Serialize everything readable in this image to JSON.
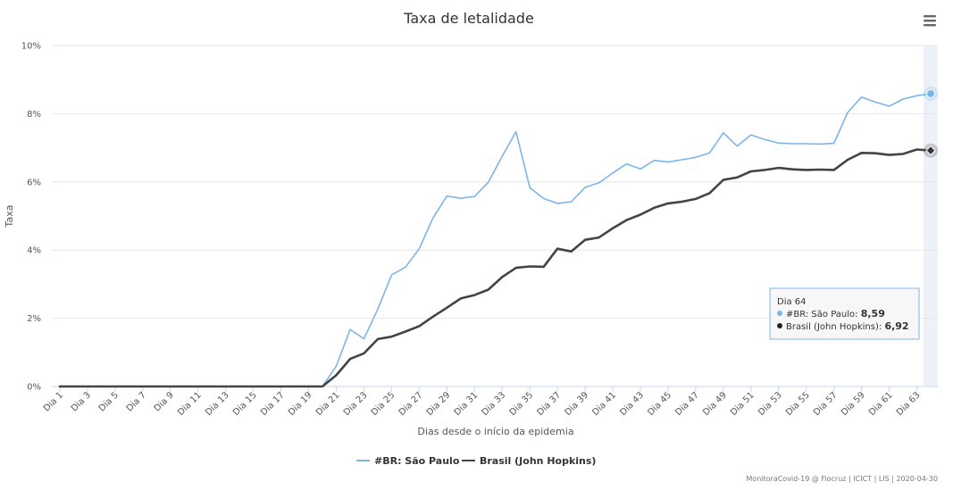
{
  "chart_data": {
    "type": "line",
    "title": "Taxa de letalidade",
    "xlabel": "Dias desde o início da epidemia",
    "ylabel": "Taxa",
    "ylim": [
      0,
      10
    ],
    "y_ticks": [
      "0%",
      "2%",
      "4%",
      "6%",
      "8%",
      "10%"
    ],
    "y_tick_values": [
      0,
      2,
      4,
      6,
      8,
      10
    ],
    "x_tick_labels": [
      "Dia 1",
      "Dia 3",
      "Dia 5",
      "Dia 7",
      "Dia 9",
      "Dia 11",
      "Dia 13",
      "Dia 15",
      "Dia 17",
      "Dia 19",
      "Dia 21",
      "Dia 23",
      "Dia 25",
      "Dia 27",
      "Dia 29",
      "Dia 31",
      "Dia 33",
      "Dia 35",
      "Dia 37",
      "Dia 39",
      "Dia 41",
      "Dia 43",
      "Dia 45",
      "Dia 47",
      "Dia 49",
      "Dia 51",
      "Dia 53",
      "Dia 55",
      "Dia 57",
      "Dia 59",
      "Dia 61",
      "Dia 63"
    ],
    "x_tick_days": [
      1,
      3,
      5,
      7,
      9,
      11,
      13,
      15,
      17,
      19,
      21,
      23,
      25,
      27,
      29,
      31,
      33,
      35,
      37,
      39,
      41,
      43,
      45,
      47,
      49,
      51,
      53,
      55,
      57,
      59,
      61,
      63
    ],
    "x_range": [
      1,
      64
    ],
    "series": [
      {
        "name": "#BR: São Paulo",
        "color": "#7cb5ec",
        "values": [
          0,
          0,
          0,
          0,
          0,
          0,
          0,
          0,
          0,
          0,
          0,
          0,
          0,
          0,
          0,
          0,
          0,
          0,
          0,
          0,
          0.6,
          1.67,
          1.4,
          2.27,
          3.27,
          3.5,
          4.04,
          4.95,
          5.58,
          5.52,
          5.57,
          5.99,
          6.75,
          7.47,
          5.83,
          5.51,
          5.37,
          5.42,
          5.84,
          5.97,
          6.26,
          6.53,
          6.38,
          6.63,
          6.58,
          6.65,
          6.72,
          6.85,
          7.44,
          7.05,
          7.38,
          7.24,
          7.14,
          7.12,
          7.12,
          7.11,
          7.13,
          8.04,
          8.49,
          8.34,
          8.22,
          8.43,
          8.53,
          8.59
        ]
      },
      {
        "name": "Brasil (John Hopkins)",
        "color": "#434348",
        "values": [
          0,
          0,
          0,
          0,
          0,
          0,
          0,
          0,
          0,
          0,
          0,
          0,
          0,
          0,
          0,
          0,
          0,
          0,
          0,
          0,
          0.33,
          0.81,
          0.97,
          1.39,
          1.46,
          1.61,
          1.77,
          2.05,
          2.31,
          2.58,
          2.68,
          2.84,
          3.21,
          3.48,
          3.52,
          3.51,
          4.04,
          3.96,
          4.3,
          4.37,
          4.64,
          4.88,
          5.04,
          5.24,
          5.37,
          5.42,
          5.5,
          5.67,
          6.06,
          6.13,
          6.31,
          6.35,
          6.41,
          6.37,
          6.35,
          6.36,
          6.35,
          6.65,
          6.85,
          6.84,
          6.79,
          6.82,
          6.95,
          6.92
        ]
      }
    ],
    "tooltip": {
      "day_label": "Dia 64",
      "day": 64,
      "rows": [
        {
          "name": "#BR: São Paulo",
          "value": "8,59",
          "color": "#7cb5ec"
        },
        {
          "name": "Brasil (John Hopkins)",
          "value": "6,92",
          "color": "#222222"
        }
      ]
    },
    "legend": [
      {
        "name": "#BR: São Paulo",
        "color": "#7cb5ec"
      },
      {
        "name": "Brasil (John Hopkins)",
        "color": "#434348"
      }
    ],
    "credits": "MonitoraCovid-19 @ Fiocruz | ICICT | LIS | 2020-04-30",
    "menu_icon": "hamburger-menu-icon"
  }
}
